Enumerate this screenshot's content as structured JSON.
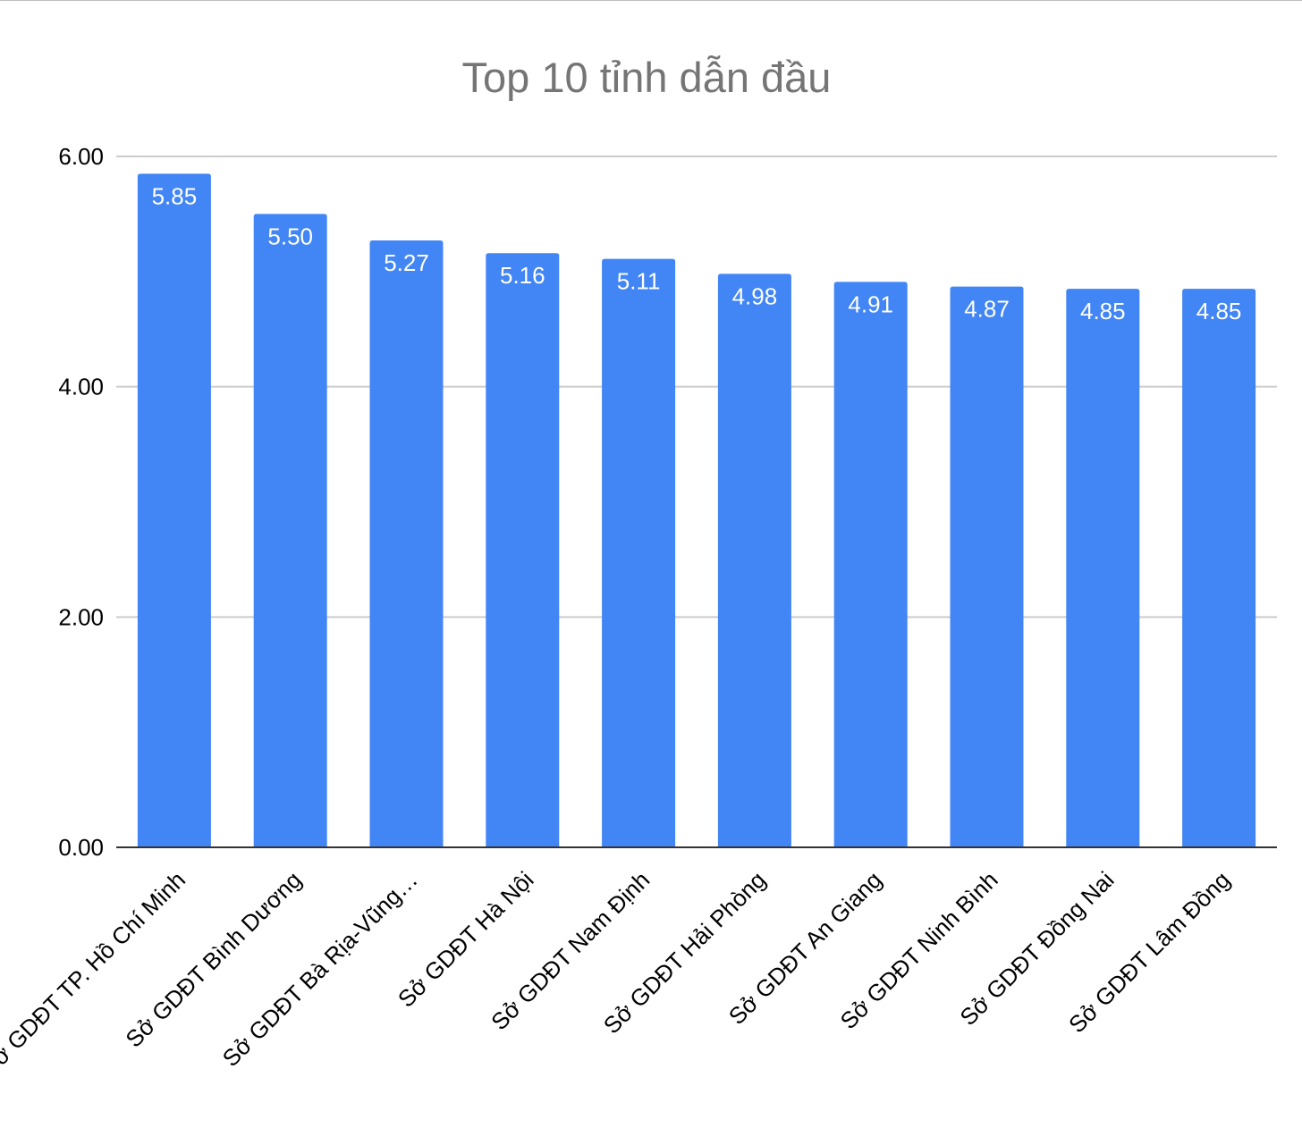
{
  "chart_data": {
    "type": "bar",
    "title": "Top 10 tỉnh dẫn đầu",
    "xlabel": "",
    "ylabel": "",
    "categories": [
      "Sở GDĐT TP. Hồ Chí Minh",
      "Sở GDĐT Bình Dương",
      "Sở GDĐT Bà Rịa-Vũng…",
      "Sở GDĐT Hà Nội",
      "Sở GDĐT Nam Định",
      "Sở GDĐT Hải Phòng",
      "Sở GDĐT An Giang",
      "Sở GDĐT Ninh Bình",
      "Sở GDĐT Đồng Nai",
      "Sở GDĐT Lâm Đồng"
    ],
    "values": [
      5.85,
      5.5,
      5.27,
      5.16,
      5.11,
      4.98,
      4.91,
      4.87,
      4.85,
      4.85
    ],
    "data_labels": [
      "5.85",
      "5.50",
      "5.27",
      "5.16",
      "5.11",
      "4.98",
      "4.91",
      "4.87",
      "4.85",
      "4.85"
    ],
    "ylim": [
      0,
      6
    ],
    "yticks": [
      0,
      2,
      4,
      6
    ],
    "ytick_labels": [
      "0.00",
      "2.00",
      "4.00",
      "6.00"
    ],
    "grid": true,
    "legend": "none",
    "bar_color": "#4285f4",
    "gridline_color": "#cccccc",
    "axis_color": "#333333"
  }
}
